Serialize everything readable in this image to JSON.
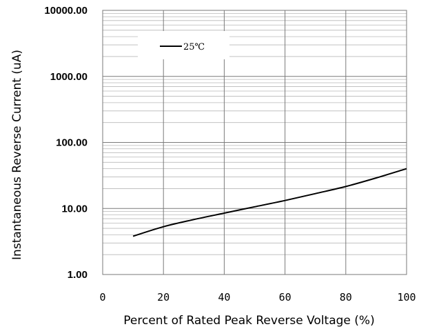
{
  "chart_data": {
    "type": "line",
    "title": "",
    "xlabel": "Percent of  Rated Peak Reverse Voltage (%)",
    "ylabel": "Instantaneous Reverse Current (uA)",
    "xlim": [
      0,
      100
    ],
    "ylim": [
      1,
      10000
    ],
    "yscale": "log",
    "xticks": [
      0,
      20,
      40,
      60,
      80,
      100
    ],
    "xtick_labels": [
      "0",
      "20",
      "40",
      "60",
      "80",
      "100"
    ],
    "yticks": [
      1,
      10,
      100,
      1000,
      10000
    ],
    "ytick_labels": [
      "1.00",
      "10.00",
      "100.00",
      "1000.00",
      "10000.00"
    ],
    "grid": true,
    "legend_position": "top-left",
    "series": [
      {
        "name": "25℃",
        "color": "#000000",
        "x": [
          10,
          20,
          30,
          40,
          50,
          60,
          70,
          80,
          90,
          100
        ],
        "y": [
          3.8,
          5.3,
          6.8,
          8.5,
          10.6,
          13.2,
          16.8,
          21.5,
          29.0,
          40.0
        ]
      }
    ]
  }
}
